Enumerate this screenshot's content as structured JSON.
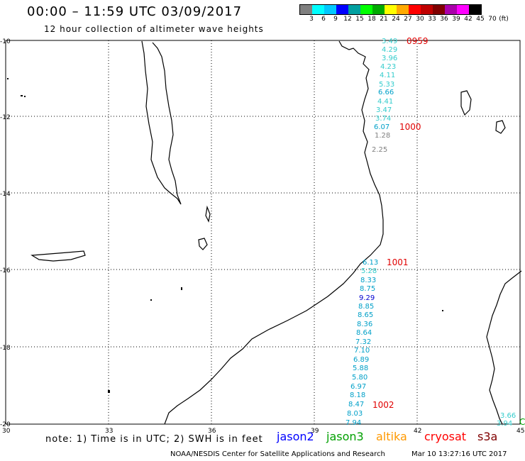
{
  "header": {
    "title": "00:00 – 11:59 UTC 03/09/2017",
    "subtitle": "12 hour collection of altimeter wave heights"
  },
  "legend": {
    "colors": [
      "#808080",
      "#00ffff",
      "#00c8ff",
      "#0000ff",
      "#00a0a0",
      "#00ff00",
      "#00aa00",
      "#ffff00",
      "#ffaa00",
      "#ff0000",
      "#c00000",
      "#800000",
      "#aa00aa",
      "#ff00ff",
      "#000000"
    ],
    "labels": [
      "3",
      "6",
      "9",
      "12",
      "15",
      "18",
      "21",
      "24",
      "27",
      "30",
      "33",
      "36",
      "39",
      "42",
      "45",
      "70",
      "(ft)"
    ]
  },
  "axes": {
    "x_ticks": [
      "30",
      "33",
      "36",
      "39",
      "42",
      "45"
    ],
    "y_ticks": [
      "-10",
      "-12",
      "-14",
      "-16",
      "-18",
      "-20"
    ]
  },
  "tracks": [
    {
      "time": "0959",
      "values": [
        "3.49",
        "4.29",
        "3.96",
        "4.23",
        "4.11",
        "5.33",
        "6.66",
        "4.41",
        "3.47",
        "3.74",
        "6.07",
        "1.28",
        "2.25"
      ]
    },
    {
      "time": "1000"
    },
    {
      "time": "1001",
      "values": [
        "6.13",
        "5.28",
        "8.33",
        "8.75",
        "9.29",
        "8.85",
        "8.65",
        "8.36",
        "8.64",
        "7.32",
        "7.10",
        "6.89",
        "5.88",
        "5.80",
        "6.97",
        "8.18",
        "8.47",
        "8.03",
        "7.94"
      ]
    },
    {
      "time": "1002"
    }
  ],
  "edge_values": [
    "3.66",
    "3.94"
  ],
  "footer": {
    "note": "note: 1) Time is in UTC; 2) SWH is in feet",
    "satellites": [
      {
        "name": "jason2",
        "color": "#0000ff"
      },
      {
        "name": "jason3",
        "color": "#00a000"
      },
      {
        "name": "altika",
        "color": "#ff9900"
      },
      {
        "name": "cryosat",
        "color": "#ff0000"
      },
      {
        "name": "s3a",
        "color": "#800000"
      }
    ],
    "credit": "NOAA/NESDIS Center for Satellite Applications and Research",
    "stamp": "Mar 10 13:27:16 UTC 2017"
  },
  "chart_data": {
    "type": "scatter",
    "title": "00:00 – 11:59 UTC 03/09/2017",
    "subtitle": "12 hour collection of altimeter wave heights",
    "xlim": [
      30,
      45
    ],
    "ylim": [
      -20,
      -10
    ],
    "series": [
      {
        "name": "",
        "points": [
          {
            "lon": 40.8,
            "lat": -10.0,
            "value": 3.49
          },
          {
            "lon": 40.8,
            "lat": -10.2,
            "value": 4.29
          },
          {
            "lon": 40.8,
            "lat": -10.4,
            "value": 3.96
          },
          {
            "lon": 40.8,
            "lat": -10.6,
            "value": 4.23
          },
          {
            "lon": 40.8,
            "lat": -10.8,
            "value": 4.11
          },
          {
            "lon": 40.8,
            "lat": -11.1,
            "value": 5.33
          },
          {
            "lon": 40.8,
            "lat": -11.3,
            "value": 6.66
          },
          {
            "lon": 40.8,
            "lat": -11.5,
            "value": 4.41
          },
          {
            "lon": 40.8,
            "lat": -11.8,
            "value": 3.47
          },
          {
            "lon": 40.8,
            "lat": -12.0,
            "value": 3.74
          },
          {
            "lon": 40.8,
            "lat": -12.2,
            "value": 6.07
          },
          {
            "lon": 40.8,
            "lat": -12.5,
            "value": 1.28
          },
          {
            "lon": 40.8,
            "lat": -12.9,
            "value": 2.25
          },
          {
            "lon": 40.4,
            "lat": -15.8,
            "value": 6.13
          },
          {
            "lon": 40.4,
            "lat": -16.0,
            "value": 5.28
          },
          {
            "lon": 40.4,
            "lat": -16.2,
            "value": 8.33
          },
          {
            "lon": 40.4,
            "lat": -16.5,
            "value": 8.75
          },
          {
            "lon": 40.3,
            "lat": -16.7,
            "value": 9.29
          },
          {
            "lon": 40.3,
            "lat": -17.0,
            "value": 8.85
          },
          {
            "lon": 40.3,
            "lat": -17.2,
            "value": 8.65
          },
          {
            "lon": 40.3,
            "lat": -17.4,
            "value": 8.36
          },
          {
            "lon": 40.2,
            "lat": -17.7,
            "value": 8.64
          },
          {
            "lon": 40.2,
            "lat": -17.9,
            "value": 7.32
          },
          {
            "lon": 40.2,
            "lat": -18.1,
            "value": 7.1
          },
          {
            "lon": 40.1,
            "lat": -18.4,
            "value": 6.89
          },
          {
            "lon": 40.1,
            "lat": -18.6,
            "value": 5.88
          },
          {
            "lon": 40.1,
            "lat": -18.8,
            "value": 5.8
          },
          {
            "lon": 40.1,
            "lat": -19.1,
            "value": 6.97
          },
          {
            "lon": 40.0,
            "lat": -19.3,
            "value": 8.18
          },
          {
            "lon": 40.0,
            "lat": -19.5,
            "value": 8.47
          },
          {
            "lon": 40.0,
            "lat": -19.8,
            "value": 8.03
          },
          {
            "lon": 39.9,
            "lat": -20.0,
            "value": 7.94
          },
          {
            "lon": 44.6,
            "lat": -19.8,
            "value": 3.66
          },
          {
            "lon": 44.6,
            "lat": -20.0,
            "value": 3.94
          }
        ]
      }
    ]
  }
}
